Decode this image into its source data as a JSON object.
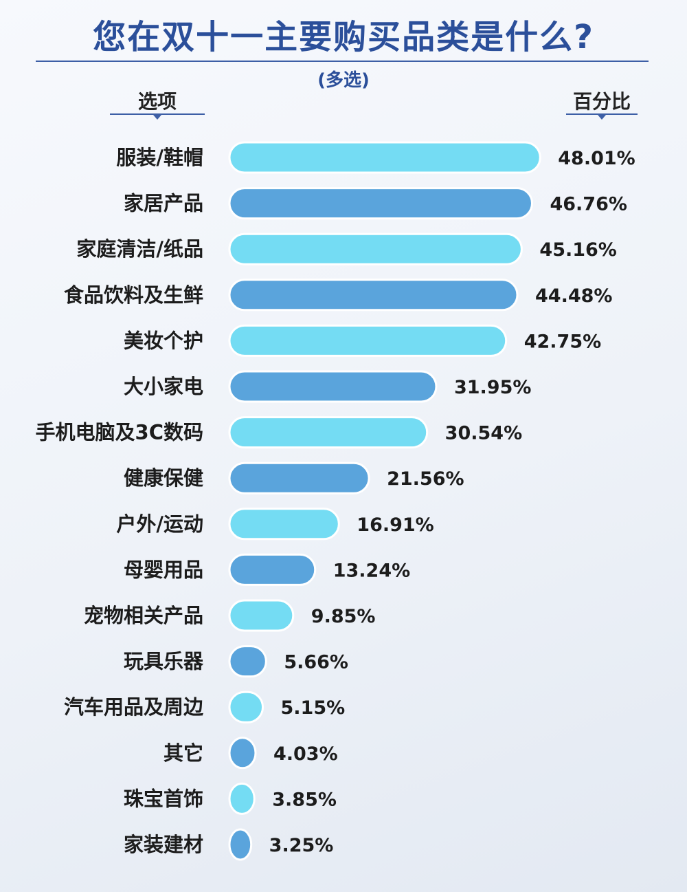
{
  "title": "您在双十一主要购买品类是什么?",
  "subtitle": "(多选)",
  "header": {
    "left": "选项",
    "right": "百分比"
  },
  "colors": {
    "light": "#74dcf3",
    "dark": "#5aa4dc",
    "accent": "#2b4f9a"
  },
  "chart_data": {
    "type": "bar",
    "orientation": "horizontal",
    "title": "您在双十一主要购买品类是什么?",
    "subtitle": "(多选)",
    "categories": [
      "服装/鞋帽",
      "家居产品",
      "家庭清洁/纸品",
      "食品饮料及生鲜",
      "美妆个护",
      "大小家电",
      "手机电脑及3C数码",
      "健康保健",
      "户外/运动",
      "母婴用品",
      "宠物相关产品",
      "玩具乐器",
      "汽车用品及周边",
      "其它",
      "珠宝首饰",
      "家装建材"
    ],
    "values": [
      48.01,
      46.76,
      45.16,
      44.48,
      42.75,
      31.95,
      30.54,
      21.56,
      16.91,
      13.24,
      9.85,
      5.66,
      5.15,
      4.03,
      3.85,
      3.25
    ],
    "labels": [
      "48.01%",
      "46.76%",
      "45.16%",
      "44.48%",
      "42.75%",
      "31.95%",
      "30.54%",
      "21.56%",
      "16.91%",
      "13.24%",
      "9.85%",
      "5.66%",
      "5.15%",
      "4.03%",
      "3.85%",
      "3.25%"
    ],
    "unit": "%",
    "grid": false,
    "legend": "none"
  }
}
